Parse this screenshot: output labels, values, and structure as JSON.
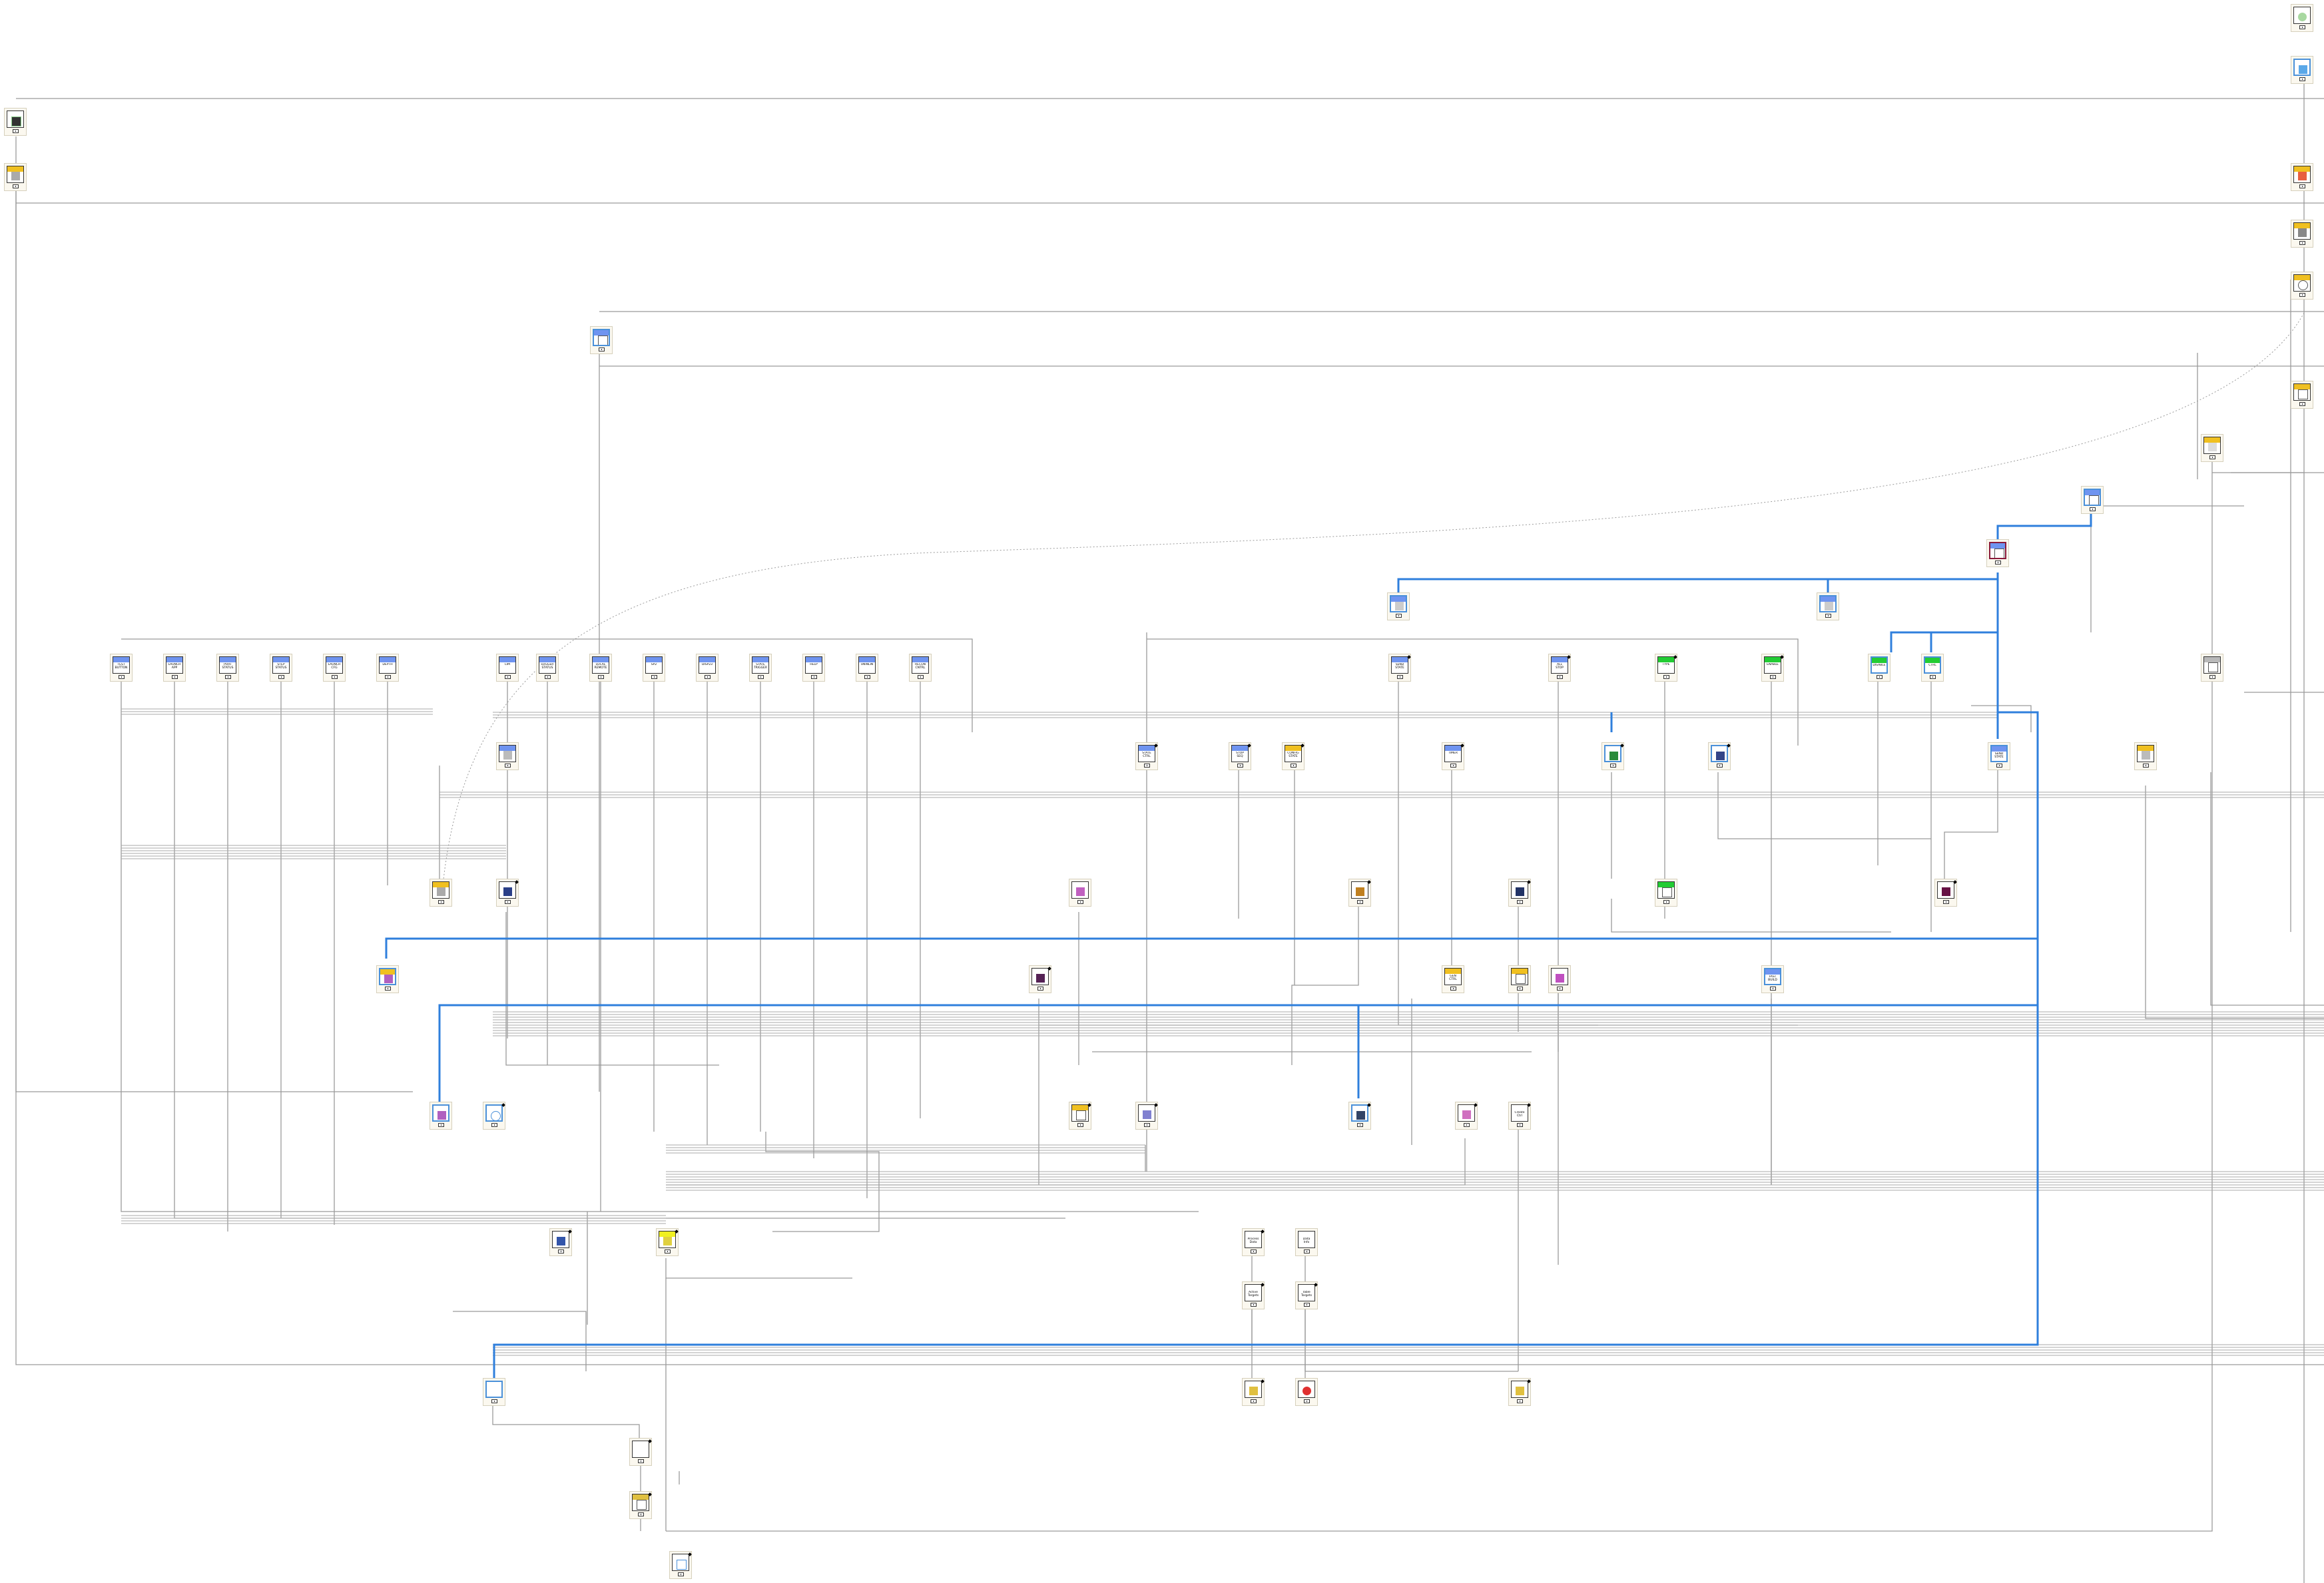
{
  "diagram": {
    "type": "labview-block-diagram",
    "colors": {
      "wire_plain": "#9a9a9a",
      "wire_bundle": "#a8a8a8",
      "wire_refnum": "#2f7fdc",
      "wire_dotted": "#9a9a9a",
      "node_bg": "#fbf8ef",
      "header_blue": "#6f94f0",
      "header_yellow": "#f0c020",
      "header_green": "#22cc33",
      "header_gray": "#b9b9b9"
    },
    "nodes": {
      "test_button": "TEST\nBUTTON",
      "launch_app": "LAUNCH\nAPP",
      "port_status": "PORT\nSTATUS",
      "step_status": "STEP\nSTATUS",
      "launch_cfg": "LAUNCH\nCFG",
      "depth": "DEPTH",
      "lim": "LIM",
      "logger_status": "LOGGER\nSTATUS",
      "local_remote": "LOCAL\nREMOTE",
      "sp2": "SP2",
      "disp23": "DISP23",
      "state_trigger": "STATE\nTRIGGER",
      "help": "HELP",
      "uninlin": "UNINLIN",
      "recon_ctrl": "RECON\nCNTRL",
      "send_state_top": "SEND\nSTATE",
      "all_stop": "ALL\nSTOP",
      "type": "TYPE",
      "enable": "ENABLE",
      "disable": "DISABLE",
      "ctrl": "CTRL",
      "send_state_mid": "SEND\nSTATE",
      "stop_seq": "STOP\nSEQ",
      "config_state": "CONFIG\nSTATE",
      "timer": "TIMER",
      "state_ctrl": "STATE\nCTRL",
      "gen_ctrl": "GEN\nCTRL",
      "fast_build_ref": "FAST\nBUILD",
      "create_ctrl": "Create\nCtrl",
      "process_data": "Process\nData",
      "data_info": "Data\nInfo",
      "active_targets": "Active\nTargets",
      "table_targets": "Table\nTargets"
    }
  }
}
